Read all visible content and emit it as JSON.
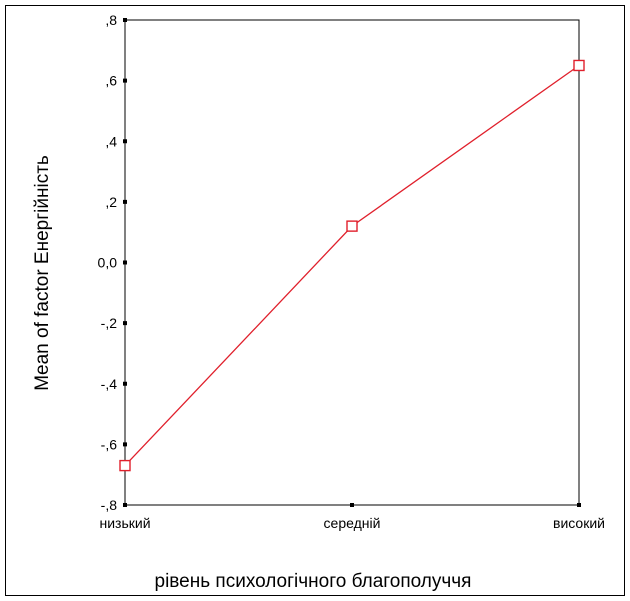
{
  "chart_data": {
    "type": "line",
    "title": "",
    "xlabel": "рівень психологічного благополуччя",
    "ylabel": "Mean of factor Енергійність",
    "categories": [
      "низький",
      "середній",
      "високий"
    ],
    "series": [
      {
        "values": [
          -0.67,
          0.12,
          0.65
        ],
        "color": "#e0202c",
        "marker": "square-open"
      }
    ],
    "ylim": [
      -0.8,
      0.8
    ],
    "yticks": [
      {
        "value": 0.8,
        "label": ",8"
      },
      {
        "value": 0.6,
        "label": ",6"
      },
      {
        "value": 0.4,
        "label": ",4"
      },
      {
        "value": 0.2,
        "label": ",2"
      },
      {
        "value": 0.0,
        "label": "0,0"
      },
      {
        "value": -0.2,
        "label": "-,2"
      },
      {
        "value": -0.4,
        "label": "-,4"
      },
      {
        "value": -0.6,
        "label": "-,6"
      },
      {
        "value": -0.8,
        "label": "-,8"
      }
    ],
    "grid": false,
    "legend": "none"
  }
}
